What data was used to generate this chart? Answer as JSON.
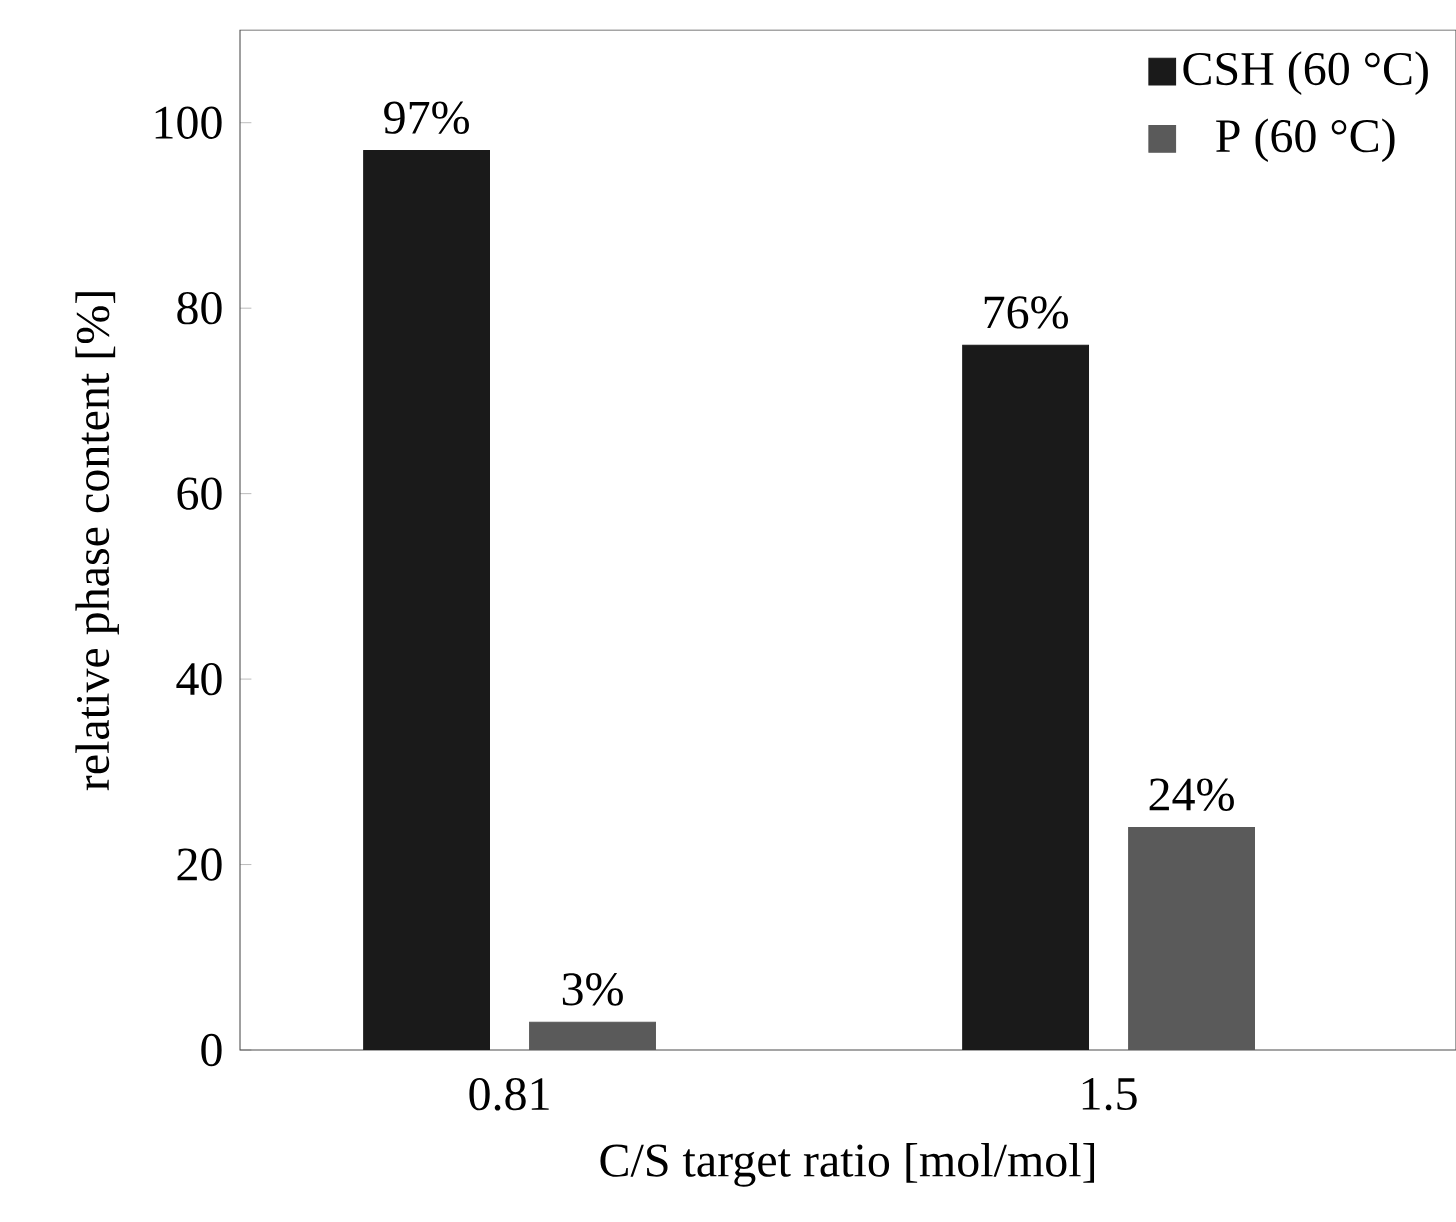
{
  "chart_data": {
    "type": "bar",
    "xlabel": "C/S target ratio [mol/mol]",
    "ylabel": "relative phase content [%]",
    "categories": [
      "0.81",
      "1.5"
    ],
    "series": [
      {
        "name": "CSH (60 °C)",
        "color": "#1a1a1a",
        "values": [
          97,
          76
        ],
        "value_labels": [
          "97%",
          "76%"
        ]
      },
      {
        "name": "P (60 °C)",
        "color": "#5a5a5a",
        "values": [
          3,
          24
        ],
        "value_labels": [
          "3%",
          "24%"
        ]
      }
    ],
    "ylim": [
      0,
      110
    ],
    "yticks": [
      0,
      20,
      40,
      60,
      80,
      100
    ],
    "legend": "top right"
  }
}
